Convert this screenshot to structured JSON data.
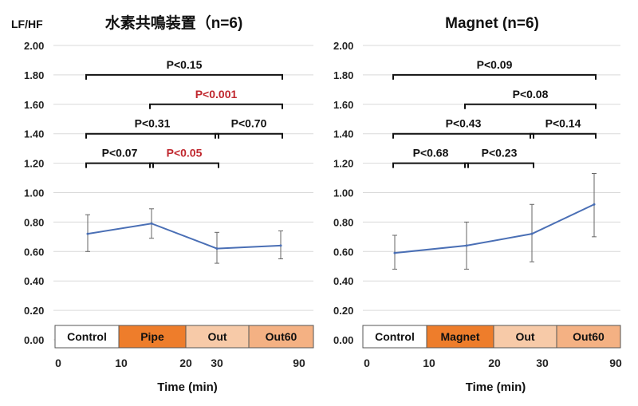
{
  "ylabel": "LF/HF",
  "xlabel": "Time (min)",
  "colors": {
    "line": "#4a6fb5",
    "sig": "#c0282f",
    "nonsig": "#111111",
    "grid": "#d9d9d9",
    "dark": "#ee7d2b",
    "light": "#f7caa8",
    "mid": "#f4b183"
  },
  "chart_data": [
    {
      "type": "line",
      "title": "水素共鳴装置（n=6)",
      "ylim": [
        0.0,
        2.0
      ],
      "y_ticks": [
        "0.00",
        "0.20",
        "0.40",
        "0.60",
        "0.80",
        "1.00",
        "1.20",
        "1.40",
        "1.60",
        "1.80",
        "2.00"
      ],
      "x_ticks": [
        "0",
        "10",
        "20",
        "30",
        "90"
      ],
      "phases": [
        {
          "label": "Control",
          "style": "plain"
        },
        {
          "label": "Pipe",
          "style": "dark"
        },
        {
          "label": "Out",
          "style": "light"
        },
        {
          "label": "Out60",
          "style": "mid"
        }
      ],
      "points": [
        {
          "phase": "Control",
          "y": 0.72,
          "err_hi": 0.85,
          "err_lo": 0.6
        },
        {
          "phase": "Pipe",
          "y": 0.79,
          "err_hi": 0.89,
          "err_lo": 0.69
        },
        {
          "phase": "Out",
          "y": 0.62,
          "err_hi": 0.73,
          "err_lo": 0.52
        },
        {
          "phase": "Out60",
          "y": 0.64,
          "err_hi": 0.74,
          "err_lo": 0.55
        }
      ],
      "comparisons": [
        {
          "from": "Control",
          "to": "Out60",
          "label": "P<0.15",
          "significant": false,
          "y": 1.8
        },
        {
          "from": "Pipe",
          "to": "Out60",
          "label": "P<0.001",
          "significant": true,
          "y": 1.6
        },
        {
          "from": "Control",
          "to": "Out",
          "label": "P<0.31",
          "significant": false,
          "y": 1.4
        },
        {
          "from": "Out",
          "to": "Out60",
          "label": "P<0.70",
          "significant": false,
          "y": 1.4
        },
        {
          "from": "Control",
          "to": "Pipe",
          "label": "P<0.07",
          "significant": false,
          "y": 1.2
        },
        {
          "from": "Pipe",
          "to": "Out",
          "label": "P<0.05",
          "significant": true,
          "y": 1.2
        }
      ]
    },
    {
      "type": "line",
      "title": "Magnet (n=6)",
      "ylim": [
        0.0,
        2.0
      ],
      "y_ticks": [
        "0.00",
        "0.20",
        "0.40",
        "0.60",
        "0.80",
        "1.00",
        "1.20",
        "1.40",
        "1.60",
        "1.80",
        "2.00"
      ],
      "x_ticks": [
        "0",
        "10",
        "20",
        "30",
        "90"
      ],
      "phases": [
        {
          "label": "Control",
          "style": "plain"
        },
        {
          "label": "Magnet",
          "style": "dark"
        },
        {
          "label": "Out",
          "style": "light"
        },
        {
          "label": "Out60",
          "style": "mid"
        }
      ],
      "points": [
        {
          "phase": "Control",
          "y": 0.59,
          "err_hi": 0.71,
          "err_lo": 0.48
        },
        {
          "phase": "Magnet",
          "y": 0.64,
          "err_hi": 0.8,
          "err_lo": 0.48
        },
        {
          "phase": "Out",
          "y": 0.72,
          "err_hi": 0.92,
          "err_lo": 0.53
        },
        {
          "phase": "Out60",
          "y": 0.92,
          "err_hi": 1.13,
          "err_lo": 0.7
        }
      ],
      "comparisons": [
        {
          "from": "Control",
          "to": "Out60",
          "label": "P<0.09",
          "significant": false,
          "y": 1.8
        },
        {
          "from": "Magnet",
          "to": "Out60",
          "label": "P<0.08",
          "significant": false,
          "y": 1.6
        },
        {
          "from": "Control",
          "to": "Out",
          "label": "P<0.43",
          "significant": false,
          "y": 1.4
        },
        {
          "from": "Out",
          "to": "Out60",
          "label": "P<0.14",
          "significant": false,
          "y": 1.4
        },
        {
          "from": "Control",
          "to": "Magnet",
          "label": "P<0.68",
          "significant": false,
          "y": 1.2
        },
        {
          "from": "Magnet",
          "to": "Out",
          "label": "P<0.23",
          "significant": false,
          "y": 1.2
        }
      ]
    }
  ]
}
